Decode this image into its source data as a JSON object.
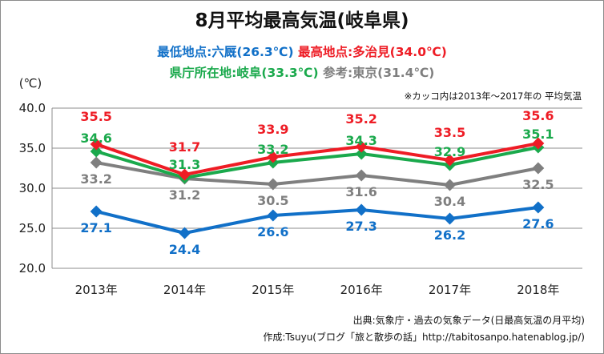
{
  "title": "8月平均最高気温(岐阜県)",
  "subtitle": {
    "lowest_label": "最低地点:六厩(26.3℃)",
    "highest_label": "最高地点:多治見(34.0℃)",
    "capital_label": "県庁所在地:岐阜(33.3℃)",
    "reference_label": "参考:東京(31.4℃)"
  },
  "note": "※カッコ内は2013年〜2017年の 平均気温",
  "credits": {
    "source": "出典:気象庁・過去の気象データ(日最高気温の月平均)",
    "author": "作成:Tsuyu(ブログ「旅と散歩の話」http://tabitosanpo.hatenablog.jp/)"
  },
  "colors": {
    "red": "#ee1c25",
    "green": "#1aa94c",
    "gray": "#7f7f7f",
    "blue": "#1170c8"
  },
  "chart_data": {
    "type": "line",
    "categories": [
      "2013年",
      "2014年",
      "2015年",
      "2016年",
      "2017年",
      "2018年"
    ],
    "ylabel": "(℃)",
    "ylim": [
      20,
      40
    ],
    "yticks": [
      "20.0",
      "25.0",
      "30.0",
      "35.0",
      "40.0"
    ],
    "grid": true,
    "series": [
      {
        "name": "最高地点:多治見",
        "color": "#ee1c25",
        "label_position": "above",
        "values": [
          35.5,
          31.7,
          33.9,
          35.2,
          33.5,
          35.6
        ],
        "labels": [
          "35.5",
          "31.7",
          "33.9",
          "35.2",
          "33.5",
          "35.6"
        ]
      },
      {
        "name": "県庁所在地:岐阜",
        "color": "#1aa94c",
        "label_position": "above",
        "values": [
          34.6,
          31.3,
          33.2,
          34.3,
          32.9,
          35.1
        ],
        "labels": [
          "34.6",
          "31.3",
          "33.2",
          "34.3",
          "32.9",
          "35.1"
        ]
      },
      {
        "name": "参考:東京",
        "color": "#7f7f7f",
        "label_position": "below",
        "values": [
          33.2,
          31.2,
          30.5,
          31.6,
          30.4,
          32.5
        ],
        "labels": [
          "33.2",
          "31.2",
          "30.5",
          "31.6",
          "30.4",
          "32.5"
        ]
      },
      {
        "name": "最低地点:六厩",
        "color": "#1170c8",
        "label_position": "below",
        "values": [
          27.1,
          24.4,
          26.6,
          27.3,
          26.2,
          27.6
        ],
        "labels": [
          "27.1",
          "24.4",
          "26.6",
          "27.3",
          "26.2",
          "27.6"
        ]
      }
    ]
  }
}
